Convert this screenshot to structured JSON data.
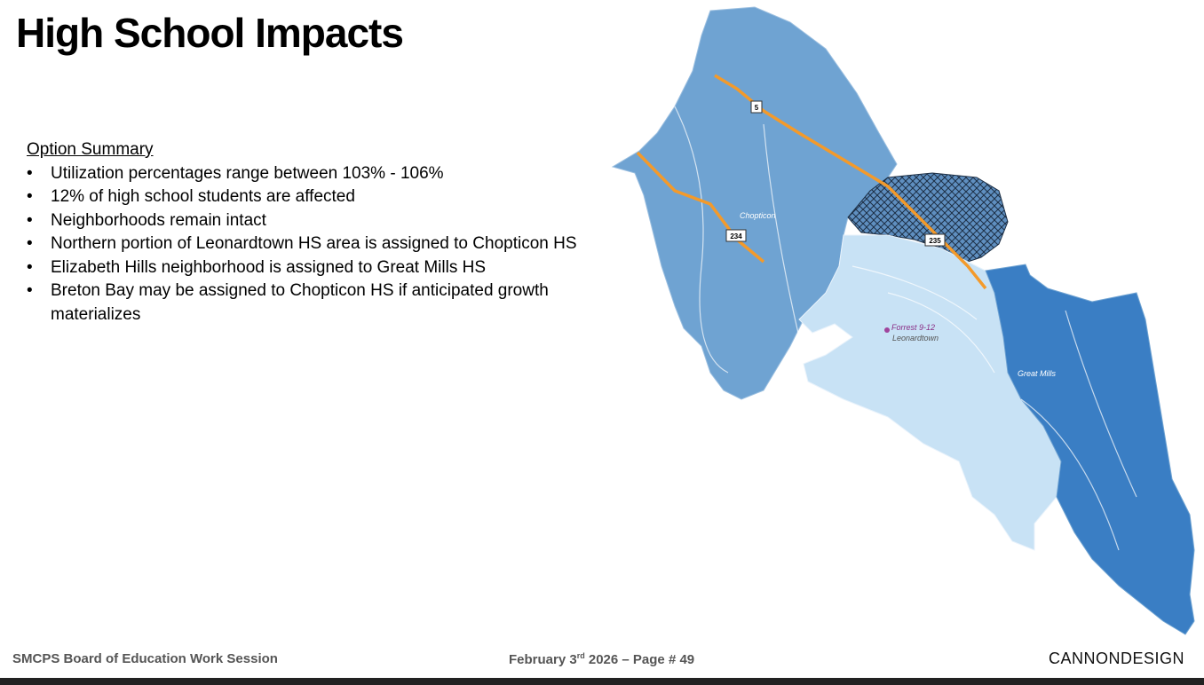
{
  "header": {
    "title": "High School Impacts"
  },
  "summary": {
    "heading": "Option Summary",
    "bullets": [
      "Utilization percentages range between 103% - 106%",
      "12% of high school students are affected",
      "Neighborhoods remain intact",
      "Northern portion of Leonardtown HS area is assigned to Chopticon HS",
      "Elizabeth Hills neighborhood is assigned to Great Mills HS",
      "Breton Bay may be assigned to Chopticon HS if anticipated growth materializes"
    ]
  },
  "map": {
    "route_shields": [
      "5",
      "234",
      "235"
    ],
    "places": [
      "Chopticon",
      "Forrest 9-12",
      "Leonardtown",
      "Great Mills"
    ]
  },
  "footer": {
    "left": "SMCPS Board of Education Work Session",
    "date_main": "February 3",
    "date_sup": "rd",
    "date_rest": "2026 – Page # 49",
    "logo": "CANNONDESIGN"
  }
}
